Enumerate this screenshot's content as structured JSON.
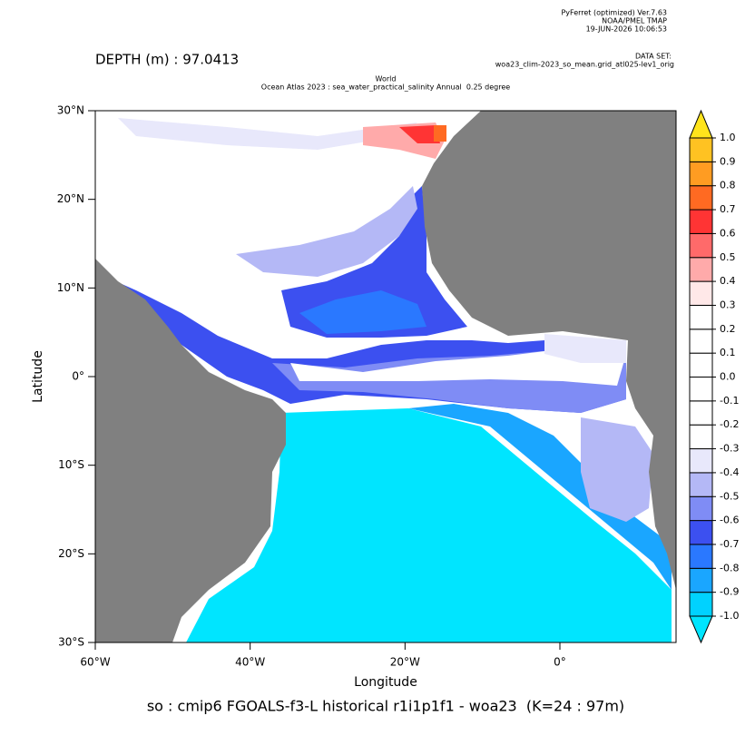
{
  "chart_data": {
    "type": "heatmap",
    "header": [
      "PyFerret (optimized) Ver.7.63",
      "NOAA/PMEL TMAP",
      "19-JUN-2026 10:06:53"
    ],
    "dataset_label": "DATA SET:",
    "dataset": "woa23_clim-2023_so_mean.grid_atl025-lev1_orig",
    "depth_label": "DEPTH (m) : 97.0413",
    "title": [
      "World",
      "Ocean Atlas 2023 : sea_water_practical_salinity Annual  0.25 degree"
    ],
    "xlabel": "Longitude",
    "ylabel": "Latitude",
    "caption": "so : cmip6 FGOALS-f3-L historical r1i1p1f1 - woa23  (K=24 : 97m)",
    "xlim": [
      -60,
      15
    ],
    "ylim": [
      -30,
      30
    ],
    "xticks": [
      {
        "value": -60,
        "label": "60°W"
      },
      {
        "value": -40,
        "label": "40°W"
      },
      {
        "value": -20,
        "label": "20°W"
      },
      {
        "value": 0,
        "label": "0°"
      }
    ],
    "yticks": [
      {
        "value": 30,
        "label": "30°N"
      },
      {
        "value": 20,
        "label": "20°N"
      },
      {
        "value": 10,
        "label": "10°N"
      },
      {
        "value": 0,
        "label": "0°"
      },
      {
        "value": -10,
        "label": "10°S"
      },
      {
        "value": -20,
        "label": "20°S"
      },
      {
        "value": -30,
        "label": "30°S"
      }
    ],
    "colorbar": {
      "levels": [
        {
          "value": -1,
          "label": "-1.0"
        },
        -0.9,
        -0.8,
        -0.7,
        -0.6,
        -0.5,
        -0.4,
        -0.3,
        -0.2,
        -0.1,
        {
          "value": 0,
          "label": "0.0"
        },
        0.1,
        0.2,
        0.3,
        0.4,
        0.5,
        0.6,
        0.7,
        0.8,
        0.9,
        {
          "value": 1,
          "label": "1.0"
        }
      ],
      "colors": [
        "#00e5ff",
        "#00d2ff",
        "#1aa6ff",
        "#2a78ff",
        "#3c50f0",
        "#7f8cf5",
        "#b4b8f6",
        "#e8e8fb",
        "#ffffff",
        "#ffffff",
        "#ffffff",
        "#ffffff",
        "#ffffff",
        "#ffffff",
        "#ffe8e8",
        "#ffaaaa",
        "#ff6a6a",
        "#ff3434",
        "#ff6a22",
        "#ff9c22",
        "#ffc222",
        "#ffe41c"
      ]
    }
  }
}
